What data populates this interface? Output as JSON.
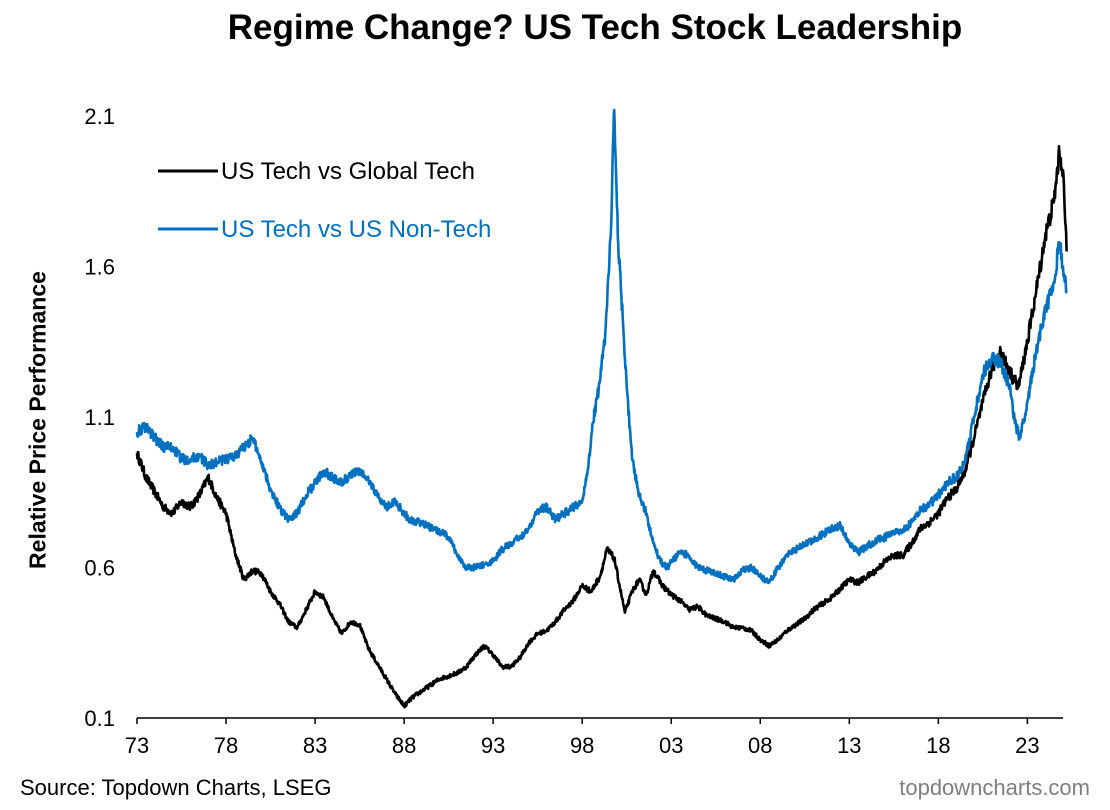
{
  "header": {
    "title": "Regime Change? US Tech Stock Leadership"
  },
  "footer": {
    "source": "Source: Topdown Charts, LSEG",
    "brand": "topdowncharts.com"
  },
  "colors": {
    "us_tech_vs_global_tech": "#000000",
    "us_tech_vs_us_non_tech": "#0070C0"
  },
  "chart_data": {
    "type": "line",
    "title": "Regime Change? US Tech Stock Leadership",
    "xlabel": "",
    "ylabel": "Relative Price Performance",
    "xlim": [
      1973,
      2025
    ],
    "ylim": [
      0.1,
      2.1
    ],
    "x_ticks": [
      1973,
      1978,
      1983,
      1988,
      1993,
      1998,
      2003,
      2008,
      2013,
      2018,
      2023
    ],
    "x_tick_labels": [
      "73",
      "78",
      "83",
      "88",
      "93",
      "98",
      "03",
      "08",
      "13",
      "18",
      "23"
    ],
    "y_ticks": [
      0.1,
      0.6,
      1.1,
      1.6,
      2.1
    ],
    "y_tick_labels": [
      "0.1",
      "0.6",
      "1.1",
      "1.6",
      "2.1"
    ],
    "grid": false,
    "legend_position": "top-left",
    "series": [
      {
        "name": "US Tech vs Global Tech",
        "color": "#000000",
        "points": [
          [
            1973.0,
            0.98
          ],
          [
            1973.5,
            0.9
          ],
          [
            1974.0,
            0.85
          ],
          [
            1974.5,
            0.8
          ],
          [
            1975.0,
            0.78
          ],
          [
            1975.5,
            0.82
          ],
          [
            1976.0,
            0.8
          ],
          [
            1976.5,
            0.84
          ],
          [
            1977.0,
            0.9
          ],
          [
            1977.5,
            0.83
          ],
          [
            1978.0,
            0.78
          ],
          [
            1978.5,
            0.65
          ],
          [
            1979.0,
            0.56
          ],
          [
            1979.5,
            0.59
          ],
          [
            1980.0,
            0.58
          ],
          [
            1980.5,
            0.52
          ],
          [
            1981.0,
            0.48
          ],
          [
            1981.5,
            0.42
          ],
          [
            1982.0,
            0.4
          ],
          [
            1982.5,
            0.46
          ],
          [
            1983.0,
            0.52
          ],
          [
            1983.5,
            0.5
          ],
          [
            1984.0,
            0.43
          ],
          [
            1984.5,
            0.38
          ],
          [
            1985.0,
            0.42
          ],
          [
            1985.5,
            0.41
          ],
          [
            1986.0,
            0.33
          ],
          [
            1986.5,
            0.28
          ],
          [
            1987.0,
            0.23
          ],
          [
            1987.5,
            0.18
          ],
          [
            1988.0,
            0.14
          ],
          [
            1988.5,
            0.17
          ],
          [
            1989.0,
            0.19
          ],
          [
            1989.5,
            0.21
          ],
          [
            1990.0,
            0.23
          ],
          [
            1990.5,
            0.24
          ],
          [
            1991.0,
            0.25
          ],
          [
            1991.5,
            0.27
          ],
          [
            1992.0,
            0.31
          ],
          [
            1992.5,
            0.34
          ],
          [
            1993.0,
            0.31
          ],
          [
            1993.5,
            0.27
          ],
          [
            1994.0,
            0.27
          ],
          [
            1994.5,
            0.3
          ],
          [
            1995.0,
            0.35
          ],
          [
            1995.5,
            0.38
          ],
          [
            1996.0,
            0.39
          ],
          [
            1996.5,
            0.42
          ],
          [
            1997.0,
            0.46
          ],
          [
            1997.5,
            0.49
          ],
          [
            1998.0,
            0.54
          ],
          [
            1998.5,
            0.52
          ],
          [
            1999.0,
            0.57
          ],
          [
            1999.4,
            0.66
          ],
          [
            1999.8,
            0.63
          ],
          [
            2000.1,
            0.54
          ],
          [
            2000.4,
            0.45
          ],
          [
            2000.8,
            0.52
          ],
          [
            2001.2,
            0.56
          ],
          [
            2001.6,
            0.51
          ],
          [
            2002.0,
            0.59
          ],
          [
            2002.5,
            0.54
          ],
          [
            2003.0,
            0.51
          ],
          [
            2003.5,
            0.49
          ],
          [
            2004.0,
            0.46
          ],
          [
            2004.5,
            0.47
          ],
          [
            2005.0,
            0.44
          ],
          [
            2005.5,
            0.43
          ],
          [
            2006.0,
            0.42
          ],
          [
            2006.5,
            0.4
          ],
          [
            2007.0,
            0.4
          ],
          [
            2007.5,
            0.39
          ],
          [
            2008.0,
            0.36
          ],
          [
            2008.5,
            0.34
          ],
          [
            2009.0,
            0.36
          ],
          [
            2009.5,
            0.39
          ],
          [
            2010.0,
            0.41
          ],
          [
            2010.5,
            0.43
          ],
          [
            2011.0,
            0.46
          ],
          [
            2011.5,
            0.48
          ],
          [
            2012.0,
            0.5
          ],
          [
            2012.5,
            0.53
          ],
          [
            2013.0,
            0.56
          ],
          [
            2013.5,
            0.55
          ],
          [
            2014.0,
            0.57
          ],
          [
            2014.5,
            0.59
          ],
          [
            2015.0,
            0.62
          ],
          [
            2015.5,
            0.64
          ],
          [
            2016.0,
            0.64
          ],
          [
            2016.5,
            0.68
          ],
          [
            2017.0,
            0.73
          ],
          [
            2017.5,
            0.75
          ],
          [
            2018.0,
            0.78
          ],
          [
            2018.5,
            0.83
          ],
          [
            2019.0,
            0.86
          ],
          [
            2019.5,
            0.92
          ],
          [
            2020.0,
            1.03
          ],
          [
            2020.5,
            1.15
          ],
          [
            2021.0,
            1.26
          ],
          [
            2021.5,
            1.32
          ],
          [
            2022.0,
            1.25
          ],
          [
            2022.5,
            1.2
          ],
          [
            2023.0,
            1.35
          ],
          [
            2023.5,
            1.52
          ],
          [
            2024.0,
            1.7
          ],
          [
            2024.5,
            1.82
          ],
          [
            2024.8,
            1.98
          ],
          [
            2025.0,
            1.92
          ],
          [
            2025.2,
            1.65
          ]
        ]
      },
      {
        "name": "US Tech vs US Non-Tech",
        "color": "#0070C0",
        "points": [
          [
            1973.0,
            1.05
          ],
          [
            1973.5,
            1.07
          ],
          [
            1974.0,
            1.03
          ],
          [
            1974.5,
            1.0
          ],
          [
            1975.0,
            1.0
          ],
          [
            1975.5,
            0.96
          ],
          [
            1976.0,
            0.96
          ],
          [
            1976.5,
            0.97
          ],
          [
            1977.0,
            0.94
          ],
          [
            1977.5,
            0.95
          ],
          [
            1978.0,
            0.96
          ],
          [
            1978.5,
            0.97
          ],
          [
            1979.0,
            1.0
          ],
          [
            1979.5,
            1.03
          ],
          [
            1980.0,
            0.95
          ],
          [
            1980.5,
            0.86
          ],
          [
            1981.0,
            0.8
          ],
          [
            1981.5,
            0.76
          ],
          [
            1982.0,
            0.78
          ],
          [
            1982.5,
            0.84
          ],
          [
            1983.0,
            0.88
          ],
          [
            1983.5,
            0.92
          ],
          [
            1984.0,
            0.9
          ],
          [
            1984.5,
            0.88
          ],
          [
            1985.0,
            0.91
          ],
          [
            1985.5,
            0.92
          ],
          [
            1986.0,
            0.89
          ],
          [
            1986.5,
            0.84
          ],
          [
            1987.0,
            0.8
          ],
          [
            1987.5,
            0.82
          ],
          [
            1988.0,
            0.78
          ],
          [
            1988.5,
            0.75
          ],
          [
            1989.0,
            0.75
          ],
          [
            1989.5,
            0.73
          ],
          [
            1990.0,
            0.72
          ],
          [
            1990.5,
            0.7
          ],
          [
            1991.0,
            0.64
          ],
          [
            1991.5,
            0.6
          ],
          [
            1992.0,
            0.6
          ],
          [
            1992.5,
            0.61
          ],
          [
            1993.0,
            0.62
          ],
          [
            1993.5,
            0.66
          ],
          [
            1994.0,
            0.68
          ],
          [
            1994.5,
            0.7
          ],
          [
            1995.0,
            0.73
          ],
          [
            1995.5,
            0.79
          ],
          [
            1996.0,
            0.8
          ],
          [
            1996.5,
            0.76
          ],
          [
            1997.0,
            0.78
          ],
          [
            1997.5,
            0.8
          ],
          [
            1998.0,
            0.82
          ],
          [
            1998.3,
            0.92
          ],
          [
            1998.6,
            1.08
          ],
          [
            1999.0,
            1.22
          ],
          [
            1999.3,
            1.38
          ],
          [
            1999.6,
            1.7
          ],
          [
            1999.8,
            2.12
          ],
          [
            2000.0,
            1.7
          ],
          [
            2000.2,
            1.5
          ],
          [
            2000.5,
            1.2
          ],
          [
            2000.8,
            0.96
          ],
          [
            2001.2,
            0.84
          ],
          [
            2001.6,
            0.78
          ],
          [
            2002.0,
            0.68
          ],
          [
            2002.4,
            0.62
          ],
          [
            2002.8,
            0.6
          ],
          [
            2003.0,
            0.62
          ],
          [
            2003.5,
            0.65
          ],
          [
            2004.0,
            0.64
          ],
          [
            2004.5,
            0.6
          ],
          [
            2005.0,
            0.59
          ],
          [
            2005.5,
            0.58
          ],
          [
            2006.0,
            0.57
          ],
          [
            2006.5,
            0.56
          ],
          [
            2007.0,
            0.59
          ],
          [
            2007.5,
            0.6
          ],
          [
            2008.0,
            0.57
          ],
          [
            2008.5,
            0.55
          ],
          [
            2009.0,
            0.6
          ],
          [
            2009.5,
            0.64
          ],
          [
            2010.0,
            0.66
          ],
          [
            2010.5,
            0.68
          ],
          [
            2011.0,
            0.69
          ],
          [
            2011.5,
            0.71
          ],
          [
            2012.0,
            0.73
          ],
          [
            2012.5,
            0.74
          ],
          [
            2013.0,
            0.68
          ],
          [
            2013.5,
            0.65
          ],
          [
            2014.0,
            0.67
          ],
          [
            2014.5,
            0.69
          ],
          [
            2015.0,
            0.7
          ],
          [
            2015.5,
            0.72
          ],
          [
            2016.0,
            0.72
          ],
          [
            2016.5,
            0.75
          ],
          [
            2017.0,
            0.79
          ],
          [
            2017.5,
            0.81
          ],
          [
            2018.0,
            0.84
          ],
          [
            2018.5,
            0.88
          ],
          [
            2019.0,
            0.9
          ],
          [
            2019.5,
            0.95
          ],
          [
            2020.0,
            1.1
          ],
          [
            2020.5,
            1.24
          ],
          [
            2021.0,
            1.3
          ],
          [
            2021.5,
            1.28
          ],
          [
            2022.0,
            1.2
          ],
          [
            2022.3,
            1.08
          ],
          [
            2022.6,
            1.03
          ],
          [
            2023.0,
            1.15
          ],
          [
            2023.5,
            1.32
          ],
          [
            2024.0,
            1.45
          ],
          [
            2024.5,
            1.55
          ],
          [
            2024.8,
            1.68
          ],
          [
            2025.0,
            1.6
          ],
          [
            2025.2,
            1.52
          ]
        ]
      }
    ]
  }
}
